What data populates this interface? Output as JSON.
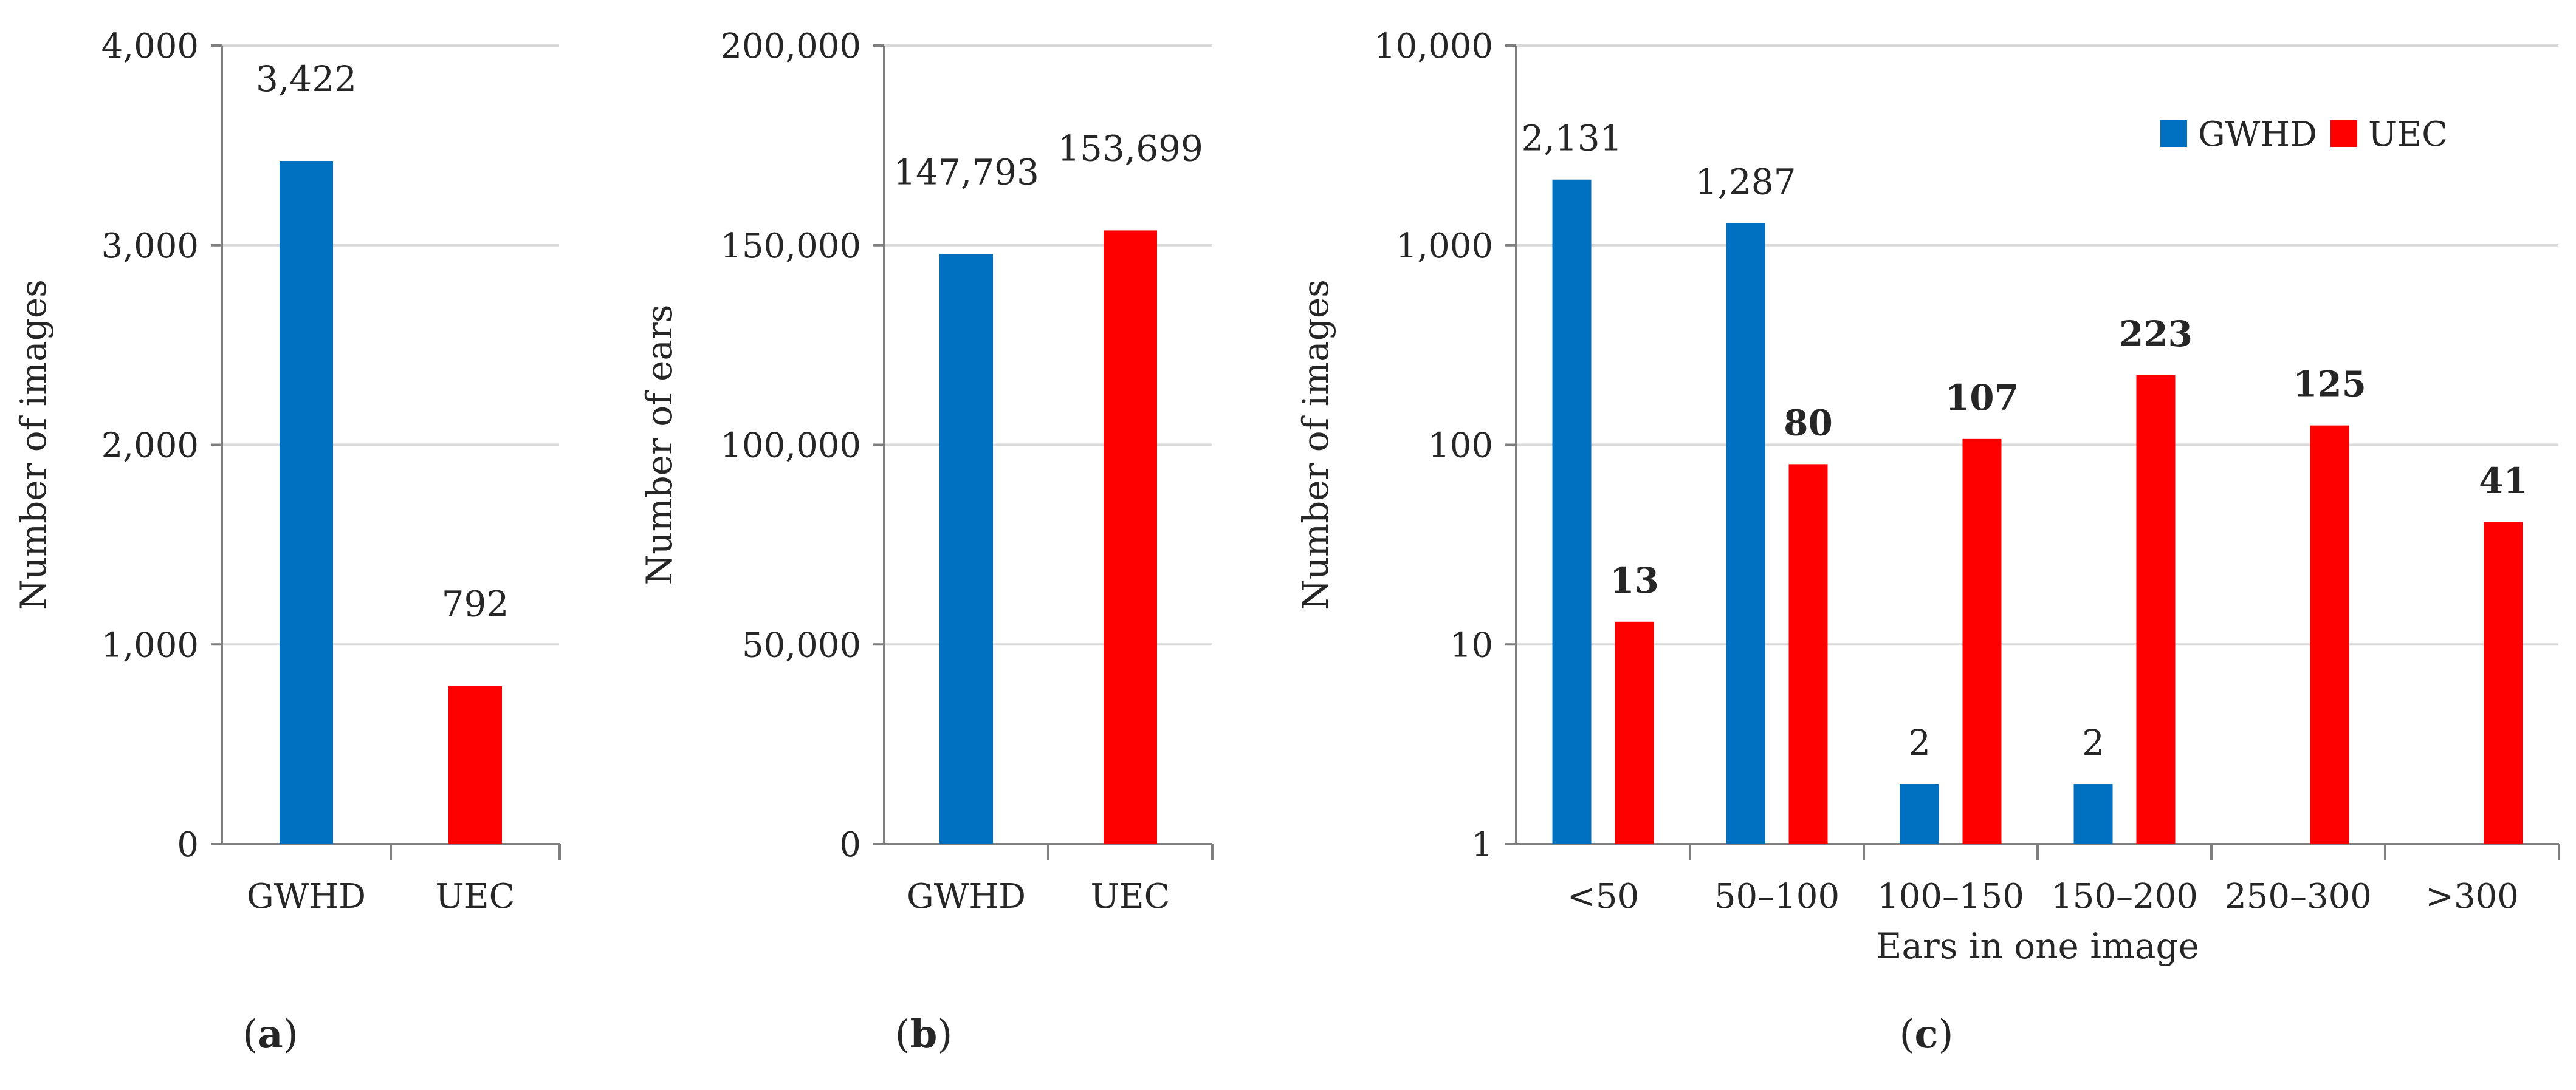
{
  "colors": {
    "gwhd": "#0070C0",
    "uec": "#FF0000",
    "grid": "#D9D9D9",
    "axis": "#7F7F7F"
  },
  "chart_data": [
    {
      "panel": "(a)",
      "panel_letter": "a",
      "type": "bar",
      "scale": "linear",
      "categories": [
        "GWHD",
        "UEC"
      ],
      "values": [
        3422,
        792
      ],
      "data_labels": [
        "3,422",
        "792"
      ],
      "bar_colors": [
        "gwhd",
        "uec"
      ],
      "ylabel": "Number of images",
      "xlabel": "",
      "ylim": [
        0,
        4000
      ],
      "yticks": [
        0,
        1000,
        2000,
        3000,
        4000
      ],
      "ytick_labels": [
        "0",
        "1,000",
        "2,000",
        "3,000",
        "4,000"
      ],
      "grid": true
    },
    {
      "panel": "(b)",
      "panel_letter": "b",
      "type": "bar",
      "scale": "linear",
      "categories": [
        "GWHD",
        "UEC"
      ],
      "values": [
        147793,
        153699
      ],
      "data_labels": [
        "147,793",
        "153,699"
      ],
      "bar_colors": [
        "gwhd",
        "uec"
      ],
      "ylabel": "Number of ears",
      "xlabel": "",
      "ylim": [
        0,
        200000
      ],
      "yticks": [
        0,
        50000,
        100000,
        150000,
        200000
      ],
      "ytick_labels": [
        "0",
        "50,000",
        "100,000",
        "150,000",
        "200,000"
      ],
      "grid": true
    },
    {
      "panel": "(c)",
      "panel_letter": "c",
      "type": "bar",
      "scale": "log",
      "categories": [
        "<50",
        "50–100",
        "100–150",
        "150–200",
        "250–300",
        ">300"
      ],
      "series": [
        {
          "name": "GWHD",
          "color": "gwhd",
          "values": [
            2131,
            1287,
            2,
            2,
            null,
            null
          ],
          "labels": [
            "2,131",
            "1,287",
            "2",
            "2",
            "",
            ""
          ],
          "bold": false
        },
        {
          "name": "UEC",
          "color": "uec",
          "values": [
            13,
            80,
            107,
            223,
            125,
            41
          ],
          "labels": [
            "13",
            "80",
            "107",
            "223",
            "125",
            "41"
          ],
          "bold": true
        }
      ],
      "ylabel": "Number of images",
      "xlabel": "Ears in one image",
      "ylim": [
        1,
        10000
      ],
      "yticks": [
        1,
        10,
        100,
        1000,
        10000
      ],
      "ytick_labels": [
        "1",
        "10",
        "100",
        "1,000",
        "10,000"
      ],
      "legend": "top-right",
      "grid": true
    }
  ]
}
